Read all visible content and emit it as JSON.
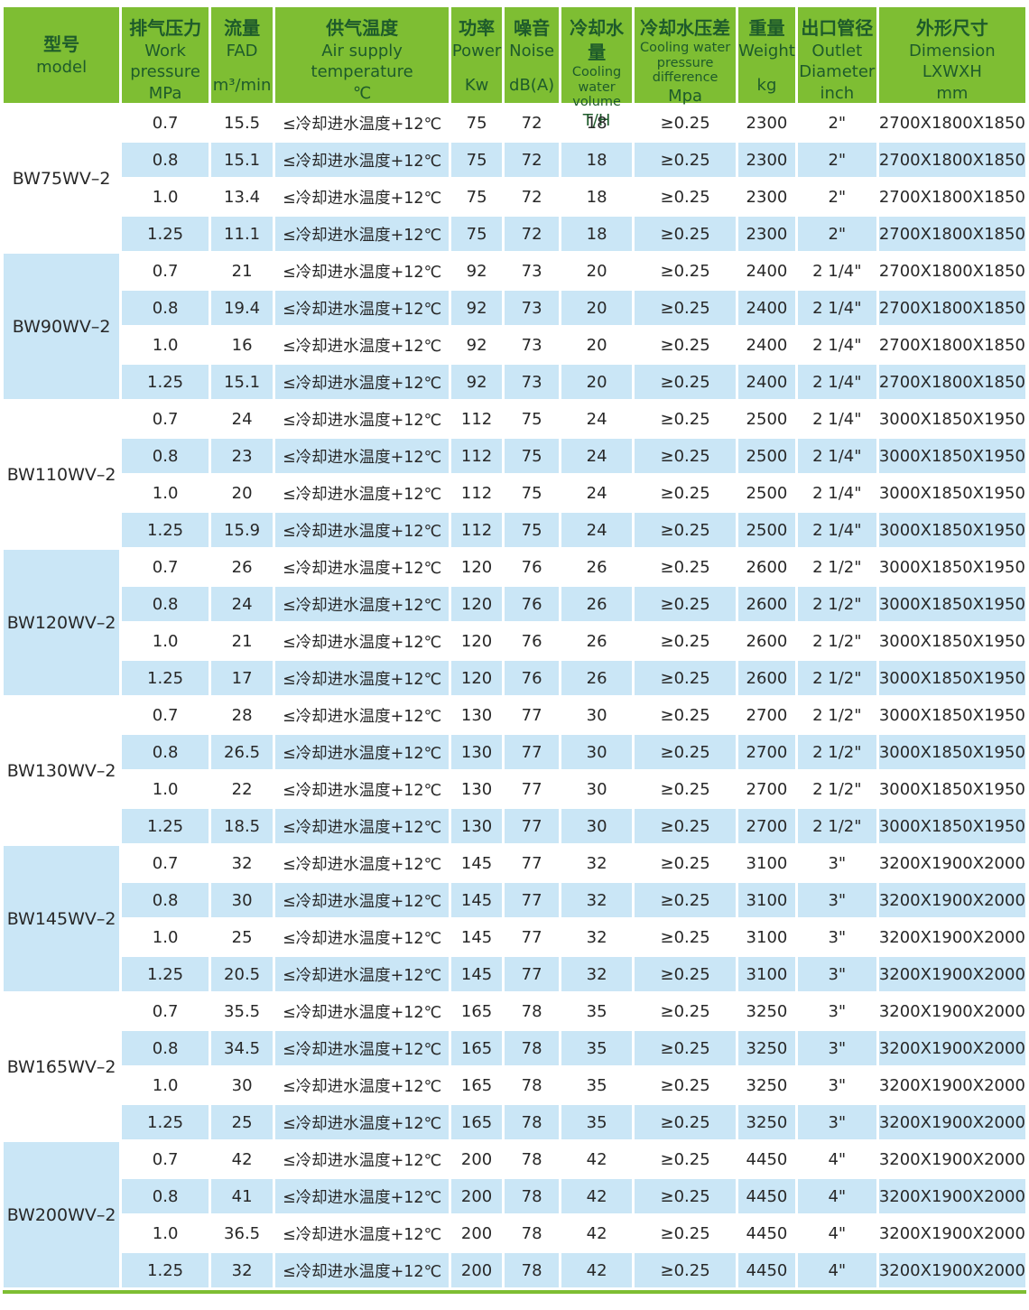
{
  "colors": {
    "header_green": "#7EBE33",
    "header_text_green": "#1E5B2B",
    "row_blue": "#CAE6F6"
  },
  "table": {
    "header": {
      "columns": [
        {
          "zh": "型号",
          "en": "model",
          "en2": "",
          "en3": "",
          "unit": ""
        },
        {
          "zh": "排气压力",
          "en": "Work",
          "en2": "pressure",
          "en3": "",
          "unit": "MPa"
        },
        {
          "zh": "流量",
          "en": "FAD",
          "en2": "",
          "en3": "",
          "unit": "m³/min"
        },
        {
          "zh": "供气温度",
          "en": "Air supply",
          "en2": "temperature",
          "en3": "",
          "unit": "℃"
        },
        {
          "zh": "功率",
          "en": "Power",
          "en2": "",
          "en3": "",
          "unit": "Kw"
        },
        {
          "zh": "噪音",
          "en": "Noise",
          "en2": "",
          "en3": "",
          "unit": "dB(A)"
        },
        {
          "zh": "冷却水量",
          "en": "Cooling",
          "en2": "water",
          "en3": "volume",
          "unit": "T/H"
        },
        {
          "zh": "冷却水压差",
          "en": "Cooling water",
          "en2": "pressure",
          "en3": "difference",
          "unit": "Mpa"
        },
        {
          "zh": "重量",
          "en": "Weight",
          "en2": "",
          "en3": "",
          "unit": "kg"
        },
        {
          "zh": "出口管径",
          "en": "Outlet",
          "en2": "Diameter",
          "en3": "",
          "unit": "inch"
        },
        {
          "zh": "外形尺寸",
          "en": "Dimension",
          "en2": "LXWXH",
          "en3": "",
          "unit": "mm"
        }
      ]
    },
    "groups": [
      {
        "model": "BW75WV–2",
        "rows": [
          [
            "0.7",
            "15.5",
            "≤冷却进水温度+12℃",
            "75",
            "72",
            "18",
            "≥0.25",
            "2300",
            "2\"",
            "2700X1800X1850"
          ],
          [
            "0.8",
            "15.1",
            "≤冷却进水温度+12℃",
            "75",
            "72",
            "18",
            "≥0.25",
            "2300",
            "2\"",
            "2700X1800X1850"
          ],
          [
            "1.0",
            "13.4",
            "≤冷却进水温度+12℃",
            "75",
            "72",
            "18",
            "≥0.25",
            "2300",
            "2\"",
            "2700X1800X1850"
          ],
          [
            "1.25",
            "11.1",
            "≤冷却进水温度+12℃",
            "75",
            "72",
            "18",
            "≥0.25",
            "2300",
            "2\"",
            "2700X1800X1850"
          ]
        ]
      },
      {
        "model": "BW90WV–2",
        "rows": [
          [
            "0.7",
            "21",
            "≤冷却进水温度+12℃",
            "92",
            "73",
            "20",
            "≥0.25",
            "2400",
            "2 1/4\"",
            "2700X1800X1850"
          ],
          [
            "0.8",
            "19.4",
            "≤冷却进水温度+12℃",
            "92",
            "73",
            "20",
            "≥0.25",
            "2400",
            "2 1/4\"",
            "2700X1800X1850"
          ],
          [
            "1.0",
            "16",
            "≤冷却进水温度+12℃",
            "92",
            "73",
            "20",
            "≥0.25",
            "2400",
            "2 1/4\"",
            "2700X1800X1850"
          ],
          [
            "1.25",
            "15.1",
            "≤冷却进水温度+12℃",
            "92",
            "73",
            "20",
            "≥0.25",
            "2400",
            "2 1/4\"",
            "2700X1800X1850"
          ]
        ]
      },
      {
        "model": "BW110WV–2",
        "rows": [
          [
            "0.7",
            "24",
            "≤冷却进水温度+12℃",
            "112",
            "75",
            "24",
            "≥0.25",
            "2500",
            "2 1/4\"",
            "3000X1850X1950"
          ],
          [
            "0.8",
            "23",
            "≤冷却进水温度+12℃",
            "112",
            "75",
            "24",
            "≥0.25",
            "2500",
            "2 1/4\"",
            "3000X1850X1950"
          ],
          [
            "1.0",
            "20",
            "≤冷却进水温度+12℃",
            "112",
            "75",
            "24",
            "≥0.25",
            "2500",
            "2 1/4\"",
            "3000X1850X1950"
          ],
          [
            "1.25",
            "15.9",
            "≤冷却进水温度+12℃",
            "112",
            "75",
            "24",
            "≥0.25",
            "2500",
            "2 1/4\"",
            "3000X1850X1950"
          ]
        ]
      },
      {
        "model": "BW120WV–2",
        "rows": [
          [
            "0.7",
            "26",
            "≤冷却进水温度+12℃",
            "120",
            "76",
            "26",
            "≥0.25",
            "2600",
            "2 1/2\"",
            "3000X1850X1950"
          ],
          [
            "0.8",
            "24",
            "≤冷却进水温度+12℃",
            "120",
            "76",
            "26",
            "≥0.25",
            "2600",
            "2 1/2\"",
            "3000X1850X1950"
          ],
          [
            "1.0",
            "21",
            "≤冷却进水温度+12℃",
            "120",
            "76",
            "26",
            "≥0.25",
            "2600",
            "2 1/2\"",
            "3000X1850X1950"
          ],
          [
            "1.25",
            "17",
            "≤冷却进水温度+12℃",
            "120",
            "76",
            "26",
            "≥0.25",
            "2600",
            "2 1/2\"",
            "3000X1850X1950"
          ]
        ]
      },
      {
        "model": "BW130WV–2",
        "rows": [
          [
            "0.7",
            "28",
            "≤冷却进水温度+12℃",
            "130",
            "77",
            "30",
            "≥0.25",
            "2700",
            "2 1/2\"",
            "3000X1850X1950"
          ],
          [
            "0.8",
            "26.5",
            "≤冷却进水温度+12℃",
            "130",
            "77",
            "30",
            "≥0.25",
            "2700",
            "2 1/2\"",
            "3000X1850X1950"
          ],
          [
            "1.0",
            "22",
            "≤冷却进水温度+12℃",
            "130",
            "77",
            "30",
            "≥0.25",
            "2700",
            "2 1/2\"",
            "3000X1850X1950"
          ],
          [
            "1.25",
            "18.5",
            "≤冷却进水温度+12℃",
            "130",
            "77",
            "30",
            "≥0.25",
            "2700",
            "2 1/2\"",
            "3000X1850X1950"
          ]
        ]
      },
      {
        "model": "BW145WV–2",
        "rows": [
          [
            "0.7",
            "32",
            "≤冷却进水温度+12℃",
            "145",
            "77",
            "32",
            "≥0.25",
            "3100",
            "3\"",
            "3200X1900X2000"
          ],
          [
            "0.8",
            "30",
            "≤冷却进水温度+12℃",
            "145",
            "77",
            "32",
            "≥0.25",
            "3100",
            "3\"",
            "3200X1900X2000"
          ],
          [
            "1.0",
            "25",
            "≤冷却进水温度+12℃",
            "145",
            "77",
            "32",
            "≥0.25",
            "3100",
            "3\"",
            "3200X1900X2000"
          ],
          [
            "1.25",
            "20.5",
            "≤冷却进水温度+12℃",
            "145",
            "77",
            "32",
            "≥0.25",
            "3100",
            "3\"",
            "3200X1900X2000"
          ]
        ]
      },
      {
        "model": "BW165WV–2",
        "rows": [
          [
            "0.7",
            "35.5",
            "≤冷却进水温度+12℃",
            "165",
            "78",
            "35",
            "≥0.25",
            "3250",
            "3\"",
            "3200X1900X2000"
          ],
          [
            "0.8",
            "34.5",
            "≤冷却进水温度+12℃",
            "165",
            "78",
            "35",
            "≥0.25",
            "3250",
            "3\"",
            "3200X1900X2000"
          ],
          [
            "1.0",
            "30",
            "≤冷却进水温度+12℃",
            "165",
            "78",
            "35",
            "≥0.25",
            "3250",
            "3\"",
            "3200X1900X2000"
          ],
          [
            "1.25",
            "25",
            "≤冷却进水温度+12℃",
            "165",
            "78",
            "35",
            "≥0.25",
            "3250",
            "3\"",
            "3200X1900X2000"
          ]
        ]
      },
      {
        "model": "BW200WV–2",
        "rows": [
          [
            "0.7",
            "42",
            "≤冷却进水温度+12℃",
            "200",
            "78",
            "42",
            "≥0.25",
            "4450",
            "4\"",
            "3200X1900X2000"
          ],
          [
            "0.8",
            "41",
            "≤冷却进水温度+12℃",
            "200",
            "78",
            "42",
            "≥0.25",
            "4450",
            "4\"",
            "3200X1900X2000"
          ],
          [
            "1.0",
            "36.5",
            "≤冷却进水温度+12℃",
            "200",
            "78",
            "42",
            "≥0.25",
            "4450",
            "4\"",
            "3200X1900X2000"
          ],
          [
            "1.25",
            "32",
            "≤冷却进水温度+12℃",
            "200",
            "78",
            "42",
            "≥0.25",
            "4450",
            "4\"",
            "3200X1900X2000"
          ]
        ]
      }
    ]
  }
}
